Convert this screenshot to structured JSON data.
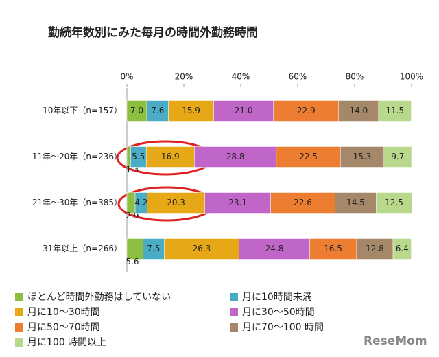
{
  "chart_data": {
    "type": "stacked-bar-horizontal",
    "title": "勤続年数別にみた毎月の時間外勤務時間",
    "categories": [
      "10年以下（n=157）",
      "11年～20年（n=236）",
      "21年～30年（n=385）",
      "31年以上（n=266）"
    ],
    "series": [
      {
        "name": "ほとんど時間外勤務はしていない",
        "color": "#8cbf3f",
        "values": [
          7.0,
          1.3,
          2.9,
          5.6
        ],
        "value_labels": [
          "7.0",
          "1.3",
          "2.9",
          "5.6"
        ]
      },
      {
        "name": "月に10時間未満",
        "color": "#4bacc6",
        "values": [
          7.6,
          5.5,
          4.2,
          7.5
        ],
        "value_labels": [
          "7.6",
          "5.5",
          "4.2",
          "7.5"
        ]
      },
      {
        "name": "月に10～30時間",
        "color": "#e6a817",
        "values": [
          15.9,
          16.9,
          20.3,
          26.3
        ],
        "value_labels": [
          "15.9",
          "16.9",
          "20.3",
          "26.3"
        ]
      },
      {
        "name": "月に30～50時間",
        "color": "#c066c8",
        "values": [
          21.0,
          28.8,
          23.1,
          24.8
        ],
        "value_labels": [
          "21.0",
          "28.8",
          "23.1",
          "24.8"
        ]
      },
      {
        "name": "月に50～70時間",
        "color": "#ed7d31",
        "values": [
          22.9,
          22.5,
          22.6,
          16.5
        ],
        "value_labels": [
          "22.9",
          "22.5",
          "22.6",
          "16.5"
        ]
      },
      {
        "name": "月に70～100 時間",
        "color": "#a5876a",
        "values": [
          14.0,
          15.3,
          14.5,
          12.8
        ],
        "value_labels": [
          "14.0",
          "15.3",
          "14.5",
          "12.8"
        ]
      },
      {
        "name": "月に100 時間以上",
        "color": "#b8d98c",
        "values": [
          11.5,
          9.7,
          12.5,
          6.4
        ],
        "value_labels": [
          "11.5",
          "9.7",
          "12.5",
          "6.4"
        ]
      }
    ],
    "xlim": [
      0,
      100
    ],
    "xticks": [
      {
        "value": 0,
        "label": "0%"
      },
      {
        "value": 20,
        "label": "20%"
      },
      {
        "value": 40,
        "label": "40%"
      },
      {
        "value": 60,
        "label": "60%"
      },
      {
        "value": 80,
        "label": "80%"
      },
      {
        "value": 100,
        "label": "100%"
      }
    ],
    "watermark": "ReseMom"
  }
}
